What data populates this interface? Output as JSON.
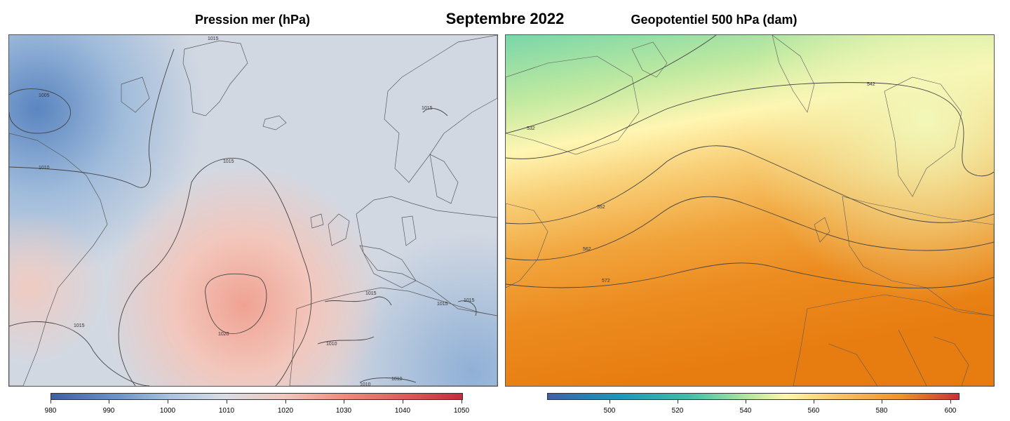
{
  "main_title": "Septembre 2022",
  "left_panel": {
    "title": "Pression mer (hPa)",
    "contour_labels": [
      "1005",
      "1010",
      "1015",
      "1015",
      "1015",
      "1015",
      "1015",
      "1020",
      "1010",
      "1015",
      "1010",
      "1010",
      "1015"
    ],
    "colorbar": {
      "ticks": [
        "980",
        "990",
        "1000",
        "1010",
        "1020",
        "1030",
        "1040",
        "1050"
      ],
      "colors": [
        "#3f5fa0",
        "#a9c3e0",
        "#d8dde5",
        "#ed8d7e",
        "#c82a3e"
      ]
    }
  },
  "right_panel": {
    "title": "Geopotentiel 500 hPa (dam)",
    "contour_labels": [
      "532",
      "542",
      "552",
      "562",
      "572"
    ],
    "colorbar": {
      "ticks": [
        "500",
        "520",
        "540",
        "560",
        "580",
        "600"
      ],
      "colors": [
        "#4060a8",
        "#3cbfa9",
        "#fff6b0",
        "#ee9424",
        "#cc2f3a"
      ]
    }
  }
}
